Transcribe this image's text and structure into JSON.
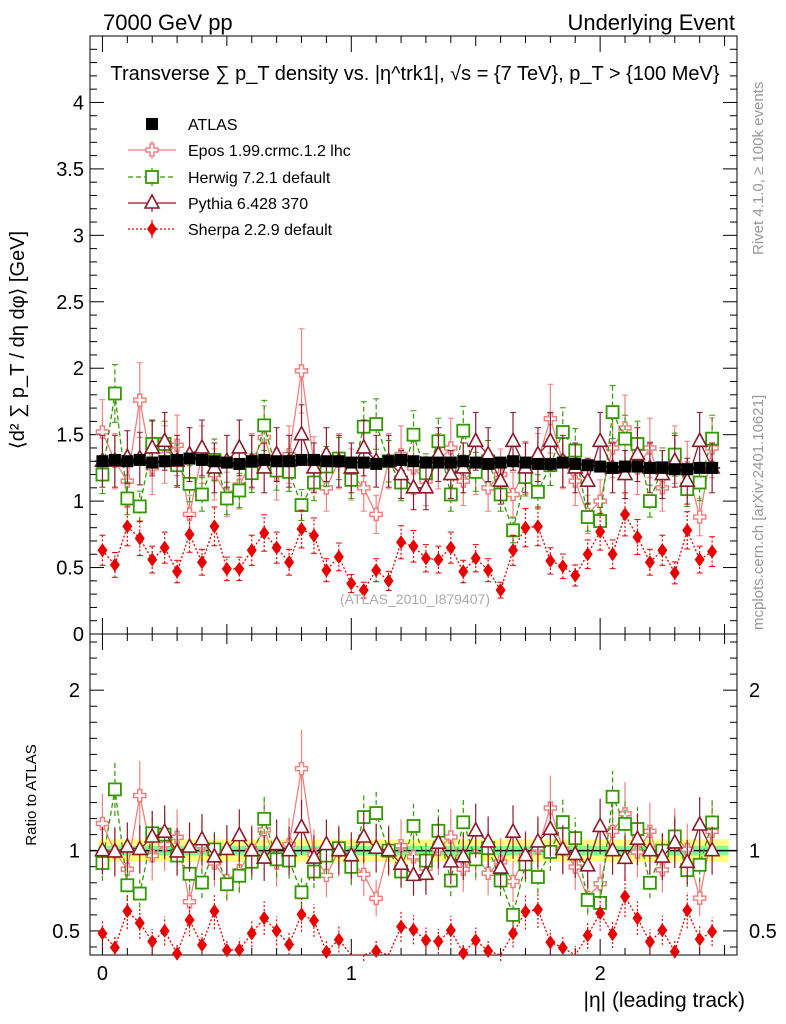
{
  "header": {
    "left": "7000 GeV pp",
    "right": "Underlying Event",
    "title": "Transverse ∑ p_T density vs. |η^trk1|, √s = {7 TeV}, p_T > {100 MeV}",
    "side_rivet": "Rivet 4.1.0, ≥ 100k events",
    "side_mcplots": "mcplots.cern.ch [arXiv:2401.10621]",
    "watermark": "(ATLAS_2010_I879407)"
  },
  "chart_data": [
    {
      "id": "main",
      "type": "scatter",
      "title": "Transverse ∑ p_T density vs. |η^trk1|, √s = {7 TeV}, p_T > {100 MeV}",
      "xlabel": "|η| (leading track)",
      "ylabel": "⟨d² ∑ p_T / dη dφ⟩ [GeV]",
      "xlim": [
        -0.05,
        2.55
      ],
      "ylim": [
        0,
        4.5
      ],
      "yticks": [
        "0",
        "0.5",
        "1",
        "1.5",
        "2",
        "2.5",
        "3",
        "3.5",
        "4"
      ],
      "x": [
        0.0,
        0.05,
        0.1,
        0.15,
        0.2,
        0.25,
        0.3,
        0.35,
        0.4,
        0.45,
        0.5,
        0.55,
        0.6,
        0.65,
        0.7,
        0.75,
        0.8,
        0.85,
        0.9,
        0.95,
        1.0,
        1.05,
        1.1,
        1.15,
        1.2,
        1.25,
        1.3,
        1.35,
        1.4,
        1.45,
        1.5,
        1.55,
        1.6,
        1.65,
        1.7,
        1.75,
        1.8,
        1.85,
        1.9,
        1.95,
        2.0,
        2.05,
        2.1,
        2.15,
        2.2,
        2.25,
        2.3,
        2.35,
        2.4,
        2.45
      ],
      "series": [
        {
          "name": "ATLAS",
          "marker": "square",
          "color": "#000000",
          "values": [
            1.3,
            1.31,
            1.3,
            1.31,
            1.29,
            1.3,
            1.31,
            1.32,
            1.31,
            1.3,
            1.29,
            1.28,
            1.3,
            1.31,
            1.3,
            1.3,
            1.31,
            1.31,
            1.3,
            1.3,
            1.29,
            1.29,
            1.28,
            1.3,
            1.31,
            1.3,
            1.29,
            1.29,
            1.29,
            1.3,
            1.29,
            1.28,
            1.29,
            1.3,
            1.29,
            1.28,
            1.28,
            1.29,
            1.28,
            1.27,
            1.26,
            1.25,
            1.26,
            1.26,
            1.25,
            1.25,
            1.24,
            1.24,
            1.25,
            1.25
          ]
        },
        {
          "name": "Epos 1.99.crmc.1.2 lhc",
          "marker": "cross-square",
          "color": "#f08080",
          "values": [
            1.52,
            1.3,
            1.15,
            1.76,
            1.25,
            1.35,
            1.42,
            0.9,
            1.35,
            1.2,
            1.05,
            1.12,
            1.3,
            1.48,
            1.2,
            1.35,
            1.98,
            1.28,
            1.1,
            1.3,
            1.2,
            1.1,
            0.9,
            1.3,
            1.35,
            1.25,
            1.15,
            1.3,
            1.4,
            1.15,
            1.25,
            1.1,
            1.2,
            1.05,
            1.25,
            1.3,
            1.62,
            1.3,
            1.15,
            0.9,
            1.0,
            1.4,
            1.55,
            1.25,
            1.4,
            1.1,
            1.35,
            1.25,
            0.88,
            1.4
          ]
        },
        {
          "name": "Herwig 7.2.1 default",
          "marker": "open-square",
          "color": "#339900",
          "values": [
            1.2,
            1.81,
            1.02,
            0.96,
            1.43,
            1.43,
            1.27,
            1.13,
            1.05,
            1.31,
            1.02,
            1.08,
            1.21,
            1.57,
            1.23,
            1.22,
            0.97,
            1.14,
            1.26,
            1.32,
            1.16,
            1.56,
            1.58,
            1.3,
            1.14,
            1.5,
            1.21,
            1.45,
            1.05,
            1.53,
            1.22,
            1.3,
            1.05,
            0.78,
            1.18,
            1.07,
            1.27,
            1.52,
            1.38,
            0.88,
            0.85,
            1.67,
            1.47,
            1.43,
            1.0,
            1.25,
            1.35,
            1.09,
            1.14,
            1.47
          ]
        },
        {
          "name": "Pythia 6.428 370",
          "marker": "open-triangle",
          "color": "#8b1a2b",
          "values": [
            1.3,
            1.3,
            1.33,
            1.32,
            1.4,
            1.45,
            1.3,
            1.35,
            1.4,
            1.25,
            1.3,
            1.4,
            1.3,
            1.25,
            1.35,
            1.3,
            1.5,
            1.25,
            1.35,
            1.3,
            1.25,
            1.4,
            1.3,
            1.3,
            1.2,
            1.1,
            1.1,
            1.35,
            1.2,
            1.25,
            1.45,
            1.35,
            1.15,
            1.45,
            1.25,
            1.35,
            1.45,
            1.3,
            1.25,
            1.15,
            1.45,
            1.25,
            1.2,
            1.35,
            1.25,
            1.2,
            1.3,
            1.15,
            1.45,
            1.25
          ]
        },
        {
          "name": "Sherpa 2.2.9 default",
          "marker": "diamond",
          "color": "#e60000",
          "values": [
            0.63,
            0.52,
            0.81,
            0.72,
            0.56,
            0.65,
            0.47,
            0.75,
            0.54,
            0.81,
            0.49,
            0.49,
            0.63,
            0.76,
            0.65,
            0.54,
            0.79,
            0.74,
            0.48,
            0.58,
            0.38,
            0.33,
            0.48,
            0.4,
            0.69,
            0.66,
            0.57,
            0.56,
            0.65,
            0.47,
            0.57,
            0.48,
            0.33,
            0.63,
            0.8,
            0.81,
            0.55,
            0.51,
            0.44,
            0.6,
            0.77,
            0.6,
            0.9,
            0.73,
            0.54,
            0.63,
            0.46,
            0.78,
            0.56,
            0.62
          ]
        }
      ]
    },
    {
      "id": "ratio",
      "type": "scatter",
      "xlabel": "|η| (leading track)",
      "ylabel": "Ratio to ATLAS",
      "xlim": [
        -0.05,
        2.55
      ],
      "ylim": [
        0.35,
        2.35
      ],
      "yticks": [
        "0.5",
        "1",
        "2"
      ],
      "xticks": [
        "0",
        "1",
        "2"
      ],
      "band": {
        "inner": 0.03,
        "outer": 0.07
      }
    }
  ],
  "legend": [
    {
      "label": "ATLAS"
    },
    {
      "label": "Epos 1.99.crmc.1.2 lhc"
    },
    {
      "label": "Herwig 7.2.1 default"
    },
    {
      "label": "Pythia 6.428 370"
    },
    {
      "label": "Sherpa 2.2.9 default"
    }
  ]
}
